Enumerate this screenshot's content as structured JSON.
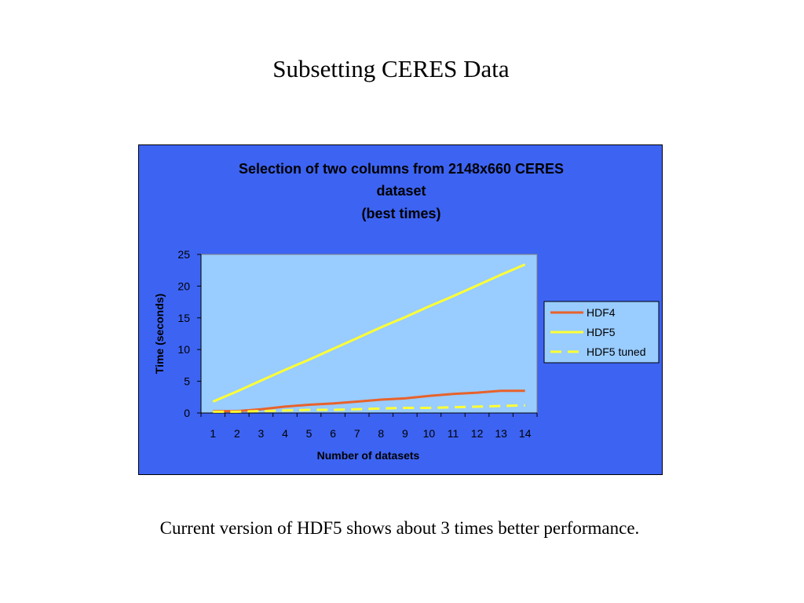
{
  "slide": {
    "title": "Subsetting CERES Data",
    "caption": "Current version of HDF5 shows about 3 times better performance."
  },
  "chart_data": {
    "type": "line",
    "title_lines": [
      "Selection of two columns from 2148x660 CERES",
      "dataset",
      "(best times)"
    ],
    "xlabel": "Number of datasets",
    "ylabel": "Time (seconds)",
    "x": [
      1,
      2,
      3,
      4,
      5,
      6,
      7,
      8,
      9,
      10,
      11,
      12,
      13,
      14
    ],
    "ylim": [
      0,
      25
    ],
    "yticks": [
      0,
      5,
      10,
      15,
      20,
      25
    ],
    "grid": false,
    "legend_position": "right",
    "colors": {
      "frame_background": "#3d63f2",
      "plot_background": "#99ccff"
    },
    "series": [
      {
        "name": "HDF4",
        "color": "#e8622a",
        "style": "solid",
        "values": [
          0.3,
          0.3,
          0.6,
          1.0,
          1.3,
          1.5,
          1.8,
          2.1,
          2.3,
          2.7,
          3.0,
          3.2,
          3.5,
          3.5
        ]
      },
      {
        "name": "HDF5",
        "color": "#ffff33",
        "style": "solid",
        "values": [
          1.8,
          3.4,
          5.1,
          6.8,
          8.4,
          10.1,
          11.8,
          13.5,
          15.1,
          16.8,
          18.4,
          20.1,
          21.8,
          23.4
        ]
      },
      {
        "name": "HDF5 tuned",
        "color": "#ffff33",
        "style": "dashed",
        "values": [
          0.2,
          0.2,
          0.3,
          0.4,
          0.5,
          0.5,
          0.6,
          0.7,
          0.8,
          0.8,
          0.9,
          1.0,
          1.1,
          1.2
        ]
      }
    ]
  }
}
